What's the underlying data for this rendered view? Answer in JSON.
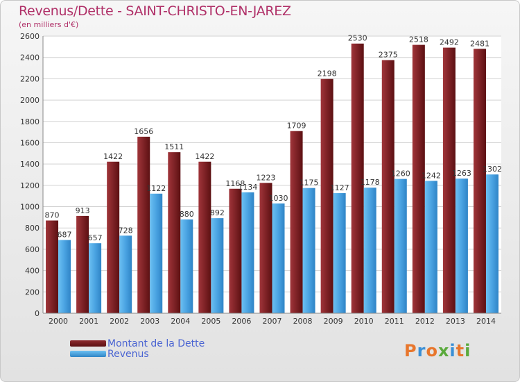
{
  "title": "Revenus/Dette - SAINT-CHRISTO-EN-JAREZ",
  "subtitle": "(en milliers d'€)",
  "legend": {
    "dette": "Montant de la Dette",
    "revenus": "Revenus"
  },
  "logo": {
    "text": "Proxiti"
  },
  "colors": {
    "dette": "#7b1a1c",
    "revenus": "#4aa3e2",
    "title": "#b03068",
    "legend_text": "#4a64d2"
  },
  "chart_data": {
    "type": "bar",
    "title": "Revenus/Dette - SAINT-CHRISTO-EN-JAREZ",
    "subtitle": "(en milliers d'€)",
    "categories": [
      "2000",
      "2001",
      "2002",
      "2003",
      "2004",
      "2005",
      "2006",
      "2007",
      "2008",
      "2009",
      "2010",
      "2011",
      "2012",
      "2013",
      "2014"
    ],
    "series": [
      {
        "name": "Montant de la Dette",
        "values": [
          870,
          913,
          1422,
          1656,
          1511,
          1422,
          1168,
          1223,
          1709,
          2198,
          2530,
          2375,
          2518,
          2492,
          2481
        ]
      },
      {
        "name": "Revenus",
        "values": [
          687,
          657,
          728,
          1122,
          880,
          892,
          1134,
          1030,
          1175,
          1127,
          1178,
          1260,
          1242,
          1263,
          1302
        ]
      }
    ],
    "ylim": [
      0,
      2600
    ],
    "yticks": [
      0,
      200,
      400,
      600,
      800,
      1000,
      1200,
      1400,
      1600,
      1800,
      2000,
      2200,
      2400,
      2600
    ],
    "grid": true,
    "legend_position": "bottom-left"
  }
}
